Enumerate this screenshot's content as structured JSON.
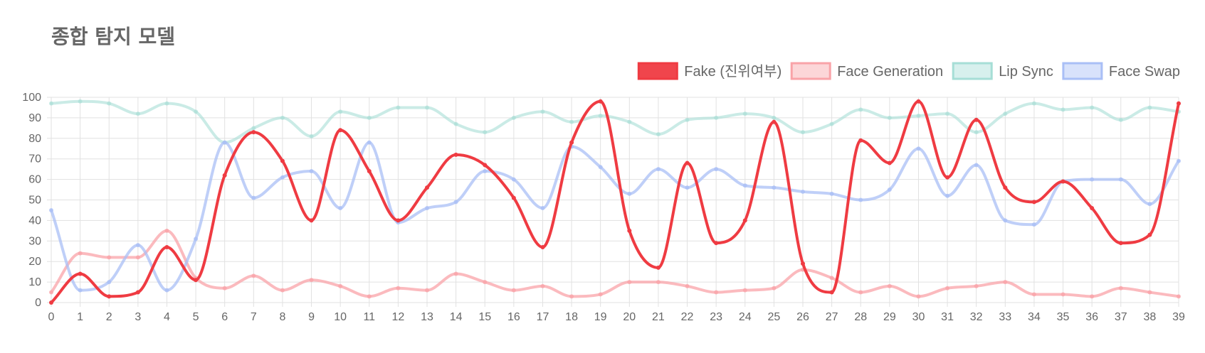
{
  "chart_data": {
    "type": "line",
    "title": "종합 탐지 모델",
    "xlabel": "",
    "ylabel": "",
    "categories": [
      "0",
      "1",
      "2",
      "3",
      "4",
      "5",
      "6",
      "7",
      "8",
      "9",
      "10",
      "11",
      "12",
      "13",
      "14",
      "15",
      "16",
      "17",
      "18",
      "19",
      "20",
      "21",
      "22",
      "23",
      "24",
      "25",
      "26",
      "27",
      "28",
      "29",
      "30",
      "31",
      "32",
      "33",
      "34",
      "35",
      "36",
      "37",
      "38",
      "39"
    ],
    "yticks": [
      0,
      10,
      20,
      30,
      40,
      50,
      60,
      70,
      80,
      90,
      100
    ],
    "ylim": [
      0,
      100
    ],
    "grid": true,
    "legend_position": "top-right",
    "series": [
      {
        "name": "Fake (진위여부)",
        "color": "#ef3b42",
        "values": [
          0,
          14,
          3,
          5,
          27,
          11,
          62,
          83,
          69,
          40,
          84,
          64,
          40,
          56,
          72,
          67,
          51,
          27,
          78,
          98,
          35,
          17,
          68,
          29,
          40,
          88,
          19,
          5,
          79,
          68,
          98,
          61,
          89,
          56,
          49,
          59,
          46,
          29,
          33,
          97
        ]
      },
      {
        "name": "Face Generation",
        "color": "#f9a3a8",
        "values": [
          5,
          24,
          22,
          22,
          35,
          12,
          7,
          13,
          6,
          11,
          8,
          3,
          7,
          6,
          14,
          10,
          6,
          8,
          3,
          4,
          10,
          10,
          8,
          5,
          6,
          7,
          16,
          12,
          5,
          8,
          3,
          7,
          8,
          10,
          4,
          4,
          3,
          7,
          5,
          3
        ]
      },
      {
        "name": "Lip Sync",
        "color": "#a6ded6",
        "values": [
          97,
          98,
          97,
          92,
          97,
          93,
          78,
          85,
          90,
          81,
          93,
          90,
          95,
          95,
          87,
          83,
          90,
          93,
          88,
          91,
          88,
          82,
          89,
          90,
          92,
          90,
          83,
          87,
          94,
          90,
          91,
          92,
          83,
          92,
          97,
          94,
          95,
          89,
          95,
          93
        ]
      },
      {
        "name": "Face Swap",
        "color": "#a9bff6",
        "values": [
          45,
          6,
          10,
          28,
          6,
          31,
          78,
          51,
          61,
          64,
          46,
          78,
          39,
          46,
          49,
          64,
          60,
          46,
          76,
          66,
          53,
          65,
          56,
          65,
          57,
          56,
          54,
          53,
          50,
          55,
          75,
          52,
          67,
          40,
          38,
          59,
          60,
          60,
          48,
          69
        ]
      }
    ]
  }
}
